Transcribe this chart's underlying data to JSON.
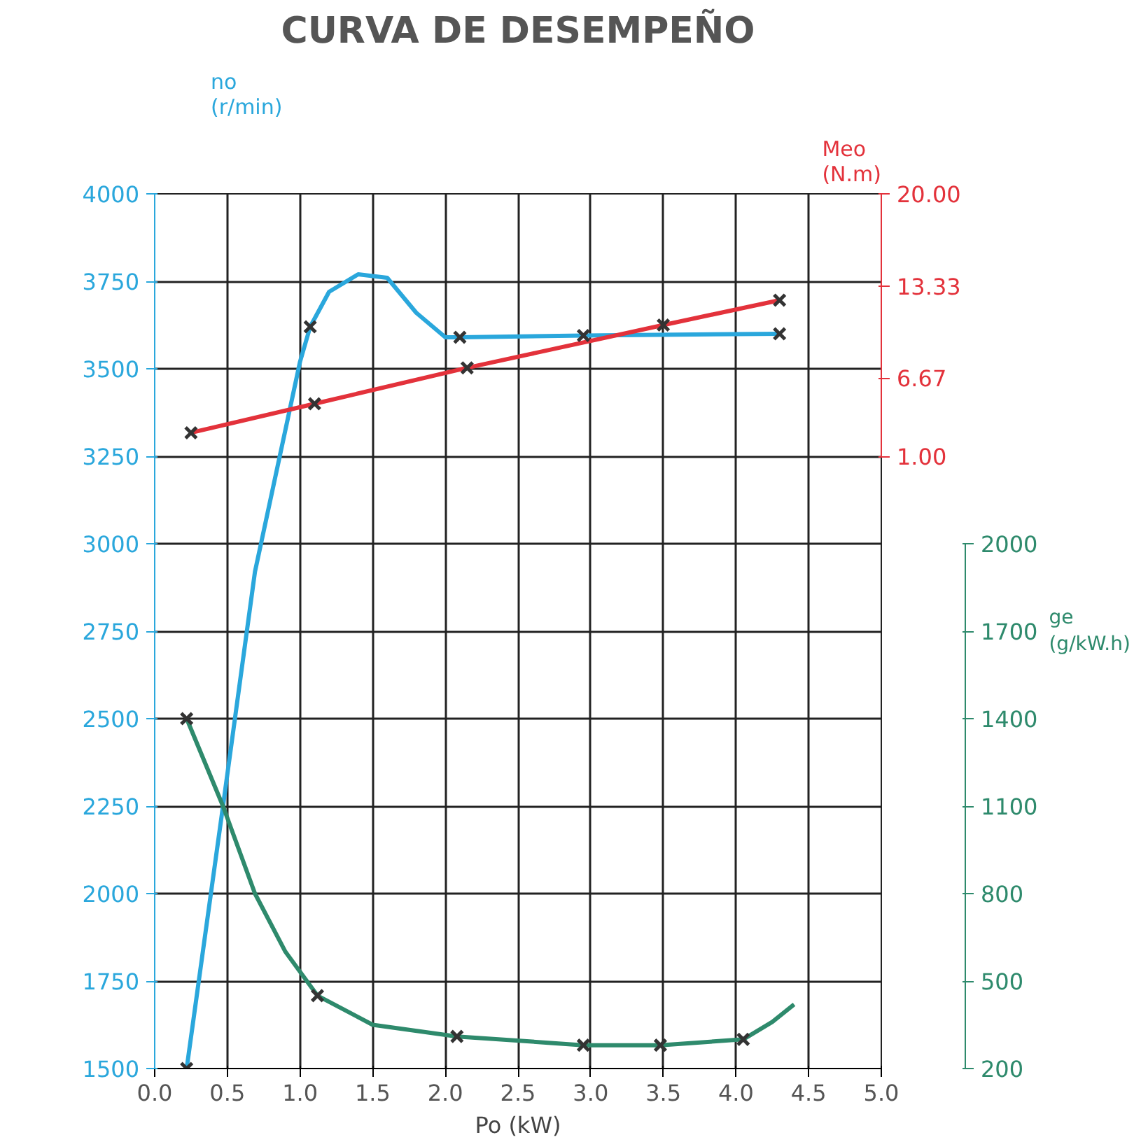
{
  "chart_data": {
    "type": "line",
    "title": "CURVA DE DESEMPEÑO",
    "xlabel": "Po (kW)",
    "ylabel": "no\n(r/min)",
    "y2label": "Meo\n(N.m)",
    "y3label": "ge\n(g/kW.h)",
    "xlim": [
      0,
      5
    ],
    "xticks": [
      {
        "value": 0,
        "label": "0.0"
      },
      {
        "value": 0.5,
        "label": "0.5"
      },
      {
        "value": 1,
        "label": "1.0"
      },
      {
        "value": 1.5,
        "label": "1.5"
      },
      {
        "value": 2,
        "label": "2.0"
      },
      {
        "value": 2.5,
        "label": "2.5"
      },
      {
        "value": 3,
        "label": "3.0"
      },
      {
        "value": 3.5,
        "label": "3.5"
      },
      {
        "value": 4,
        "label": "4.0"
      },
      {
        "value": 4.5,
        "label": "4.5"
      },
      {
        "value": 5,
        "label": "5.0"
      }
    ],
    "ylim": [
      1500,
      4000
    ],
    "yticks": [
      1500,
      1750,
      2000,
      2250,
      2500,
      2750,
      3000,
      3250,
      3500,
      3750,
      4000
    ],
    "y2lim": [
      1,
      20
    ],
    "y2ticks": [
      {
        "value": 1,
        "label": "1.00"
      },
      6.67,
      13.33,
      {
        "value": 20,
        "label": "20.00"
      }
    ],
    "y3lim": [
      200,
      2000
    ],
    "y3ticks": [
      200,
      500,
      800,
      1100,
      1400,
      1700,
      2000
    ],
    "grid": true,
    "series": [
      {
        "color": "#2aa7dc",
        "axis": "y",
        "marker": "none",
        "x": [
          0.22,
          0.47,
          0.69,
          1.0,
          1.07,
          1.2,
          1.4,
          1.6,
          1.8,
          2.0,
          2.1,
          2.95,
          4.3
        ],
        "values": [
          1500,
          2250,
          2920,
          3520,
          3620,
          3720,
          3770,
          3760,
          3660,
          3590,
          3590,
          3595,
          3600
        ]
      },
      {
        "color": "#e3323b",
        "axis": "y2",
        "marker": "none",
        "x": [
          0.25,
          1.1,
          2.15,
          3.5,
          4.3
        ],
        "values": [
          2.7,
          4.8,
          7.4,
          10.5,
          12.3
        ]
      },
      {
        "color": "#2e8a6c",
        "axis": "y3",
        "marker": "none",
        "x": [
          0.22,
          0.47,
          0.69,
          0.9,
          1.12,
          1.5,
          2.08,
          2.95,
          3.48,
          4.05,
          4.25,
          4.4
        ],
        "values": [
          1400,
          1100,
          800,
          600,
          450,
          350,
          310,
          280,
          280,
          300,
          360,
          420
        ]
      },
      {
        "type": "scatter",
        "color": "#333333",
        "axis": "y",
        "marker": "cross",
        "x": [
          0.22,
          1.07,
          2.1,
          2.95,
          4.3
        ],
        "values": [
          1500,
          3620,
          3590,
          3595,
          3600
        ]
      },
      {
        "type": "scatter",
        "color": "#333333",
        "axis": "y2",
        "marker": "cross",
        "x": [
          0.25,
          1.1,
          2.15,
          3.5,
          4.3
        ],
        "values": [
          2.7,
          4.8,
          7.4,
          10.5,
          12.3
        ]
      },
      {
        "type": "scatter",
        "color": "#333333",
        "axis": "y3",
        "marker": "cross",
        "x": [
          0.22,
          1.12,
          2.08,
          2.95,
          3.48,
          4.05
        ],
        "values": [
          1400,
          450,
          310,
          280,
          280,
          300
        ]
      }
    ]
  }
}
